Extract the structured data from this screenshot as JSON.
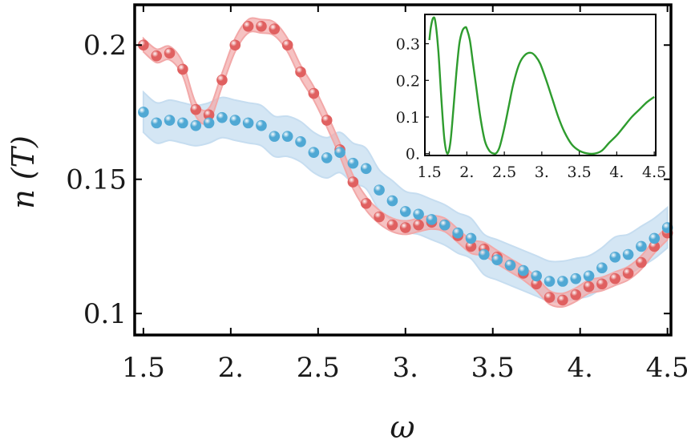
{
  "chart_data": [
    {
      "type": "scatter",
      "title": "",
      "xlabel": "ω",
      "ylabel": "n (T)",
      "xlim": [
        1.45,
        4.52
      ],
      "ylim": [
        0.092,
        0.215
      ],
      "x_ticks": [
        1.5,
        2.0,
        2.5,
        3.0,
        3.5,
        4.0,
        4.5
      ],
      "x_tick_labels": [
        "1.5",
        "2.",
        "2.5",
        "3.",
        "3.5",
        "4.",
        "4.5"
      ],
      "y_ticks": [
        0.1,
        0.15,
        0.2
      ],
      "y_tick_labels": [
        "0.1",
        "0.15",
        "0.2"
      ],
      "grid": false,
      "series": [
        {
          "name": "red",
          "color": "#e06060",
          "band_color": "#f2a8a8",
          "band_halfwidth": 0.0025,
          "x": [
            1.5,
            1.575,
            1.65,
            1.725,
            1.8,
            1.875,
            1.95,
            2.025,
            2.1,
            2.175,
            2.25,
            2.325,
            2.4,
            2.475,
            2.55,
            2.625,
            2.7,
            2.775,
            2.85,
            2.925,
            3.0,
            3.075,
            3.15,
            3.225,
            3.3,
            3.375,
            3.45,
            3.525,
            3.6,
            3.675,
            3.75,
            3.825,
            3.9,
            3.975,
            4.05,
            4.125,
            4.2,
            4.275,
            4.35,
            4.425,
            4.5
          ],
          "y": [
            0.2,
            0.196,
            0.197,
            0.191,
            0.176,
            0.174,
            0.187,
            0.2,
            0.207,
            0.207,
            0.206,
            0.2,
            0.19,
            0.182,
            0.172,
            0.161,
            0.149,
            0.141,
            0.136,
            0.133,
            0.132,
            0.133,
            0.134,
            0.133,
            0.129,
            0.125,
            0.124,
            0.121,
            0.118,
            0.115,
            0.111,
            0.106,
            0.105,
            0.107,
            0.11,
            0.111,
            0.113,
            0.115,
            0.119,
            0.125,
            0.13
          ]
        },
        {
          "name": "blue",
          "color": "#4fa8d4",
          "band_color": "#c6ddf0",
          "band_halfwidth": 0.0075,
          "x": [
            1.5,
            1.575,
            1.65,
            1.725,
            1.8,
            1.875,
            1.95,
            2.025,
            2.1,
            2.175,
            2.25,
            2.325,
            2.4,
            2.475,
            2.55,
            2.625,
            2.7,
            2.775,
            2.85,
            2.925,
            3.0,
            3.075,
            3.15,
            3.225,
            3.3,
            3.375,
            3.45,
            3.525,
            3.6,
            3.675,
            3.75,
            3.825,
            3.9,
            3.975,
            4.05,
            4.125,
            4.2,
            4.275,
            4.35,
            4.425,
            4.5
          ],
          "y": [
            0.175,
            0.171,
            0.172,
            0.171,
            0.17,
            0.171,
            0.173,
            0.172,
            0.171,
            0.17,
            0.166,
            0.166,
            0.164,
            0.16,
            0.158,
            0.16,
            0.156,
            0.154,
            0.146,
            0.142,
            0.138,
            0.137,
            0.135,
            0.133,
            0.13,
            0.128,
            0.122,
            0.12,
            0.118,
            0.116,
            0.114,
            0.112,
            0.112,
            0.113,
            0.114,
            0.117,
            0.121,
            0.122,
            0.125,
            0.128,
            0.132
          ]
        }
      ]
    },
    {
      "type": "line",
      "title": "",
      "xlabel": "",
      "ylabel": "",
      "xlim": [
        1.44,
        4.52
      ],
      "ylim": [
        -0.005,
        0.38
      ],
      "x_ticks": [
        1.5,
        2.0,
        2.5,
        3.0,
        3.5,
        4.0,
        4.5
      ],
      "x_tick_labels": [
        "1.5",
        "2.",
        "2.5",
        "3.",
        "3.5",
        "4.",
        "4.5"
      ],
      "y_ticks": [
        0.0,
        0.1,
        0.2,
        0.3
      ],
      "y_tick_labels": [
        "0.",
        "0.1",
        "0.2",
        "0.3"
      ],
      "grid": false,
      "series": [
        {
          "name": "inset",
          "color": "#2e9c2e",
          "x": [
            1.5,
            1.52,
            1.55,
            1.58,
            1.62,
            1.66,
            1.7,
            1.74,
            1.78,
            1.82,
            1.86,
            1.9,
            1.94,
            1.98,
            2.0,
            2.04,
            2.08,
            2.12,
            2.18,
            2.24,
            2.3,
            2.36,
            2.4,
            2.44,
            2.5,
            2.56,
            2.62,
            2.7,
            2.78,
            2.86,
            2.92,
            2.98,
            3.06,
            3.14,
            3.22,
            3.3,
            3.4,
            3.5,
            3.6,
            3.7,
            3.8,
            3.9,
            4.0,
            4.1,
            4.2,
            4.3,
            4.4,
            4.5
          ],
          "y": [
            0.31,
            0.345,
            0.37,
            0.36,
            0.28,
            0.15,
            0.04,
            0.0,
            0.03,
            0.12,
            0.22,
            0.3,
            0.335,
            0.345,
            0.34,
            0.31,
            0.25,
            0.19,
            0.1,
            0.035,
            0.008,
            0.0,
            0.003,
            0.02,
            0.07,
            0.13,
            0.19,
            0.245,
            0.27,
            0.275,
            0.265,
            0.245,
            0.2,
            0.15,
            0.1,
            0.06,
            0.025,
            0.008,
            0.001,
            0.0,
            0.008,
            0.03,
            0.05,
            0.075,
            0.1,
            0.12,
            0.14,
            0.155
          ]
        }
      ]
    }
  ]
}
